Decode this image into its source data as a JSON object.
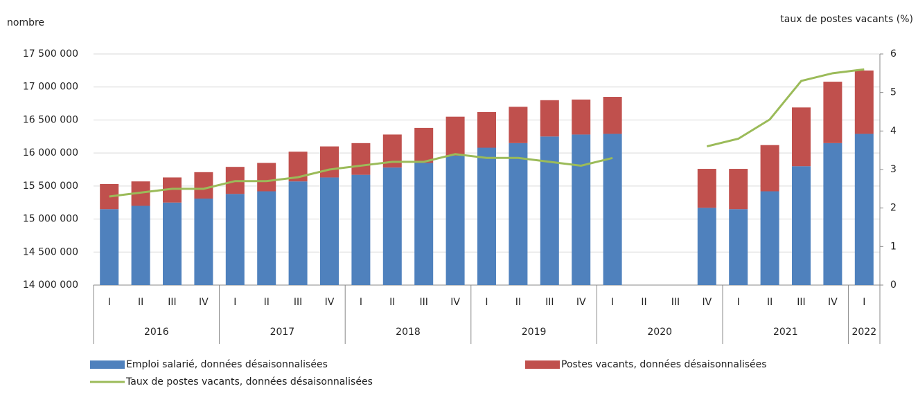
{
  "chart_data": {
    "type": "stacked_bar_line",
    "y_axis_label": "nombre",
    "y2_axis_label": "taux de postes vacants (%)",
    "categories": [
      "I",
      "II",
      "III",
      "IV",
      "I",
      "II",
      "III",
      "IV",
      "I",
      "II",
      "III",
      "IV",
      "I",
      "II",
      "III",
      "IV",
      "I",
      "II",
      "III",
      "IV",
      "I",
      "II",
      "III",
      "IV",
      "I"
    ],
    "category_groups": [
      {
        "name": "2016",
        "count": 4
      },
      {
        "name": "2017",
        "count": 4
      },
      {
        "name": "2018",
        "count": 4
      },
      {
        "name": "2019",
        "count": 4
      },
      {
        "name": "2020",
        "count": 4
      },
      {
        "name": "2021",
        "count": 4
      },
      {
        "name": "2022",
        "count": 1
      }
    ],
    "series": [
      {
        "name": "Emploi salarié, données désaisonnalisées",
        "color": "#4f81bd",
        "kind": "bar",
        "values": [
          15150000,
          15200000,
          15250000,
          15310000,
          15380000,
          15420000,
          15570000,
          15630000,
          15670000,
          15780000,
          15850000,
          15960000,
          16080000,
          16150000,
          16250000,
          16280000,
          16290000,
          null,
          null,
          15170000,
          15150000,
          15420000,
          15800000,
          16150000,
          16290000
        ]
      },
      {
        "name": "Postes vacants, données désaisonnalisées",
        "color": "#c0504d",
        "kind": "bar",
        "values": [
          380000,
          370000,
          380000,
          400000,
          410000,
          430000,
          450000,
          470000,
          480000,
          500000,
          530000,
          590000,
          540000,
          550000,
          550000,
          530000,
          560000,
          null,
          null,
          590000,
          610000,
          700000,
          890000,
          930000,
          960000
        ]
      },
      {
        "name": "Taux de postes vacants, données désaisonnalisées",
        "color": "#9bbb59",
        "kind": "line",
        "axis": "y2",
        "values": [
          2.3,
          2.4,
          2.5,
          2.5,
          2.7,
          2.7,
          2.8,
          3.0,
          3.1,
          3.2,
          3.2,
          3.4,
          3.3,
          3.3,
          3.2,
          3.1,
          3.3,
          null,
          null,
          3.6,
          3.8,
          4.3,
          5.3,
          5.5,
          5.6
        ]
      }
    ],
    "ylim": [
      14000000,
      17500000
    ],
    "yticks": [
      {
        "value": 14000000,
        "label": "14 000 000"
      },
      {
        "value": 14500000,
        "label": "14 500 000"
      },
      {
        "value": 15000000,
        "label": "15 000 000"
      },
      {
        "value": 15500000,
        "label": "15 500 000"
      },
      {
        "value": 16000000,
        "label": "16 000 000"
      },
      {
        "value": 16500000,
        "label": "16 500 000"
      },
      {
        "value": 17000000,
        "label": "17 000 000"
      },
      {
        "value": 17500000,
        "label": "17 500 000"
      }
    ],
    "y2lim": [
      0,
      6
    ],
    "y2ticks": [
      0,
      1,
      2,
      3,
      4,
      5,
      6
    ],
    "grid": true,
    "legend": "bottom"
  }
}
